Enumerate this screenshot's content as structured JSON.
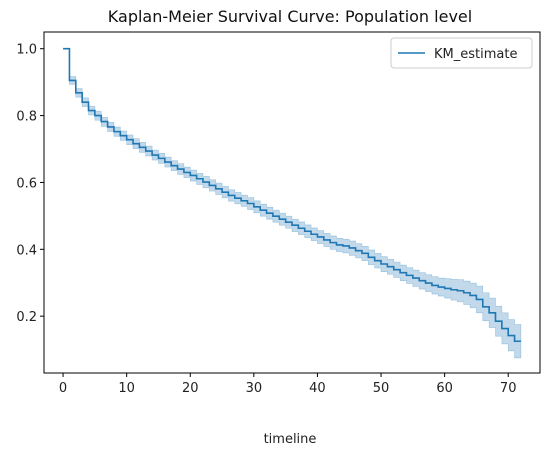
{
  "chart_data": {
    "type": "line",
    "title": "Kaplan-Meier Survival Curve: Population level",
    "xlabel": "timeline",
    "ylabel": "",
    "xlim": [
      -3,
      75
    ],
    "ylim": [
      0.03,
      1.05
    ],
    "xticks": [
      0,
      10,
      20,
      30,
      40,
      50,
      60,
      70
    ],
    "yticks": [
      0.2,
      0.4,
      0.6,
      0.8,
      1.0
    ],
    "ytick_labels": [
      "0.2",
      "0.4",
      "0.6",
      "0.8",
      "1.0"
    ],
    "grid": false,
    "legend_position": "top-right",
    "series": [
      {
        "name": "KM_estimate",
        "color": "#1f77b4",
        "step": "post",
        "x": [
          0,
          1,
          2,
          3,
          4,
          5,
          6,
          7,
          8,
          9,
          10,
          11,
          12,
          13,
          14,
          15,
          16,
          17,
          18,
          19,
          20,
          21,
          22,
          23,
          24,
          25,
          26,
          27,
          28,
          29,
          30,
          31,
          32,
          33,
          34,
          35,
          36,
          37,
          38,
          39,
          40,
          41,
          42,
          43,
          44,
          45,
          46,
          47,
          48,
          49,
          50,
          51,
          52,
          53,
          54,
          55,
          56,
          57,
          58,
          59,
          60,
          61,
          62,
          63,
          64,
          65,
          66,
          67,
          68,
          69,
          70,
          71,
          72
        ],
        "y": [
          1.0,
          0.905,
          0.868,
          0.84,
          0.815,
          0.8,
          0.782,
          0.766,
          0.752,
          0.74,
          0.728,
          0.716,
          0.705,
          0.694,
          0.682,
          0.672,
          0.661,
          0.65,
          0.64,
          0.63,
          0.621,
          0.611,
          0.601,
          0.591,
          0.581,
          0.571,
          0.561,
          0.553,
          0.545,
          0.537,
          0.527,
          0.517,
          0.508,
          0.499,
          0.49,
          0.481,
          0.472,
          0.463,
          0.454,
          0.445,
          0.437,
          0.428,
          0.42,
          0.413,
          0.41,
          0.404,
          0.396,
          0.388,
          0.376,
          0.366,
          0.356,
          0.348,
          0.339,
          0.33,
          0.322,
          0.314,
          0.306,
          0.299,
          0.292,
          0.287,
          0.283,
          0.279,
          0.276,
          0.27,
          0.262,
          0.25,
          0.228,
          0.21,
          0.185,
          0.163,
          0.142,
          0.125,
          0.125
        ],
        "ci_lower": [
          1.0,
          0.893,
          0.855,
          0.827,
          0.802,
          0.786,
          0.768,
          0.752,
          0.738,
          0.726,
          0.713,
          0.701,
          0.69,
          0.679,
          0.667,
          0.657,
          0.646,
          0.635,
          0.624,
          0.614,
          0.604,
          0.594,
          0.584,
          0.574,
          0.564,
          0.554,
          0.544,
          0.536,
          0.528,
          0.519,
          0.509,
          0.499,
          0.49,
          0.481,
          0.472,
          0.463,
          0.453,
          0.444,
          0.435,
          0.426,
          0.417,
          0.408,
          0.4,
          0.393,
          0.389,
          0.382,
          0.374,
          0.366,
          0.354,
          0.344,
          0.333,
          0.325,
          0.316,
          0.306,
          0.298,
          0.289,
          0.281,
          0.273,
          0.266,
          0.26,
          0.254,
          0.248,
          0.243,
          0.235,
          0.225,
          0.21,
          0.186,
          0.166,
          0.14,
          0.117,
          0.096,
          0.075,
          0.075
        ],
        "ci_upper": [
          1.0,
          0.917,
          0.881,
          0.853,
          0.828,
          0.813,
          0.795,
          0.78,
          0.766,
          0.754,
          0.742,
          0.731,
          0.72,
          0.709,
          0.697,
          0.687,
          0.676,
          0.665,
          0.656,
          0.646,
          0.637,
          0.627,
          0.618,
          0.608,
          0.598,
          0.588,
          0.578,
          0.57,
          0.562,
          0.555,
          0.545,
          0.535,
          0.526,
          0.517,
          0.508,
          0.499,
          0.49,
          0.482,
          0.473,
          0.464,
          0.456,
          0.448,
          0.44,
          0.433,
          0.43,
          0.425,
          0.417,
          0.409,
          0.398,
          0.388,
          0.378,
          0.37,
          0.362,
          0.353,
          0.345,
          0.338,
          0.33,
          0.324,
          0.318,
          0.314,
          0.312,
          0.31,
          0.309,
          0.305,
          0.299,
          0.29,
          0.27,
          0.254,
          0.23,
          0.21,
          0.19,
          0.175,
          0.175
        ]
      }
    ]
  }
}
